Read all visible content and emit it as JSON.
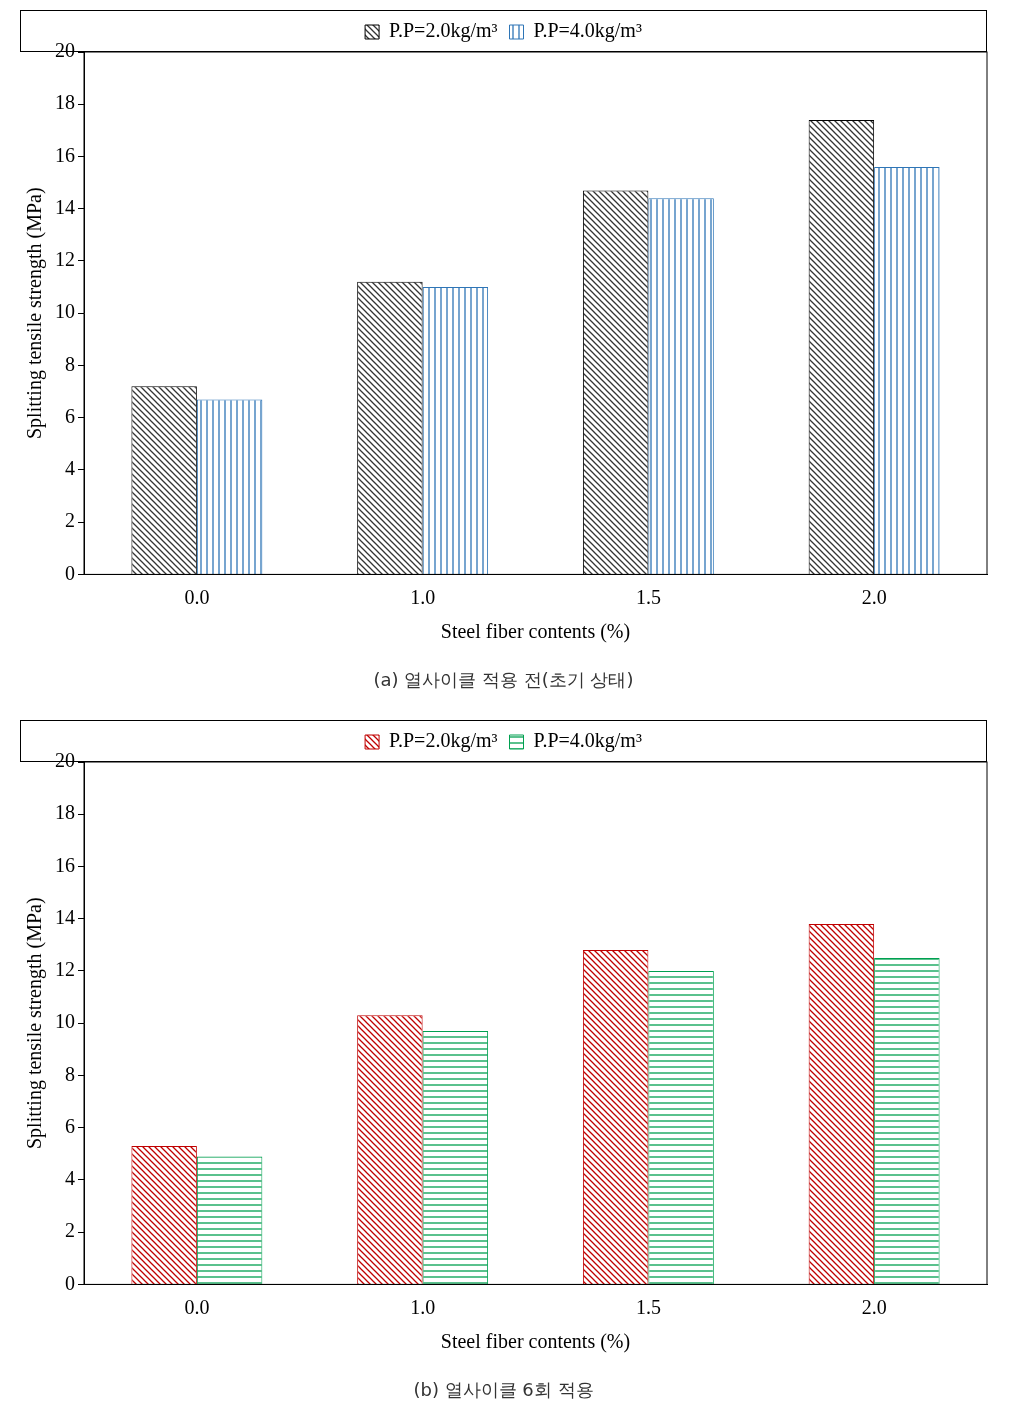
{
  "chart_data": [
    {
      "type": "bar",
      "title": "(a) 열사이클 적용 전(초기 상태)",
      "x_label": "Steel fiber contents (%)",
      "y_label": "Splitting tensile strength (MPa)",
      "categories": [
        "0.0",
        "1.0",
        "1.5",
        "2.0"
      ],
      "series": [
        {
          "name": "P.P=2.0kg/m³",
          "color": "#333333",
          "values": [
            7.2,
            11.2,
            14.7,
            17.4
          ]
        },
        {
          "name": "P.P=4.0kg/m³",
          "color": "#2e75b6",
          "values": [
            6.7,
            11.0,
            14.4,
            15.6
          ]
        }
      ],
      "ylim": [
        0,
        20
      ],
      "yticks": [
        0,
        2,
        4,
        6,
        8,
        10,
        12,
        14,
        16,
        18,
        20
      ],
      "grid": false,
      "legend": "top"
    },
    {
      "type": "bar",
      "title": "(b) 열사이클 6회 적용",
      "x_label": "Steel fiber contents (%)",
      "y_label": "Splitting tensile strength (MPa)",
      "categories": [
        "0.0",
        "1.0",
        "1.5",
        "2.0"
      ],
      "series": [
        {
          "name": "P.P=2.0kg/m³",
          "color": "#c00000",
          "values": [
            5.3,
            10.3,
            12.8,
            13.8
          ]
        },
        {
          "name": "P.P=4.0kg/m³",
          "color": "#00a050",
          "values": [
            4.9,
            9.7,
            12.0,
            12.5
          ]
        }
      ],
      "ylim": [
        0,
        20
      ],
      "yticks": [
        0,
        2,
        4,
        6,
        8,
        10,
        12,
        14,
        16,
        18,
        20
      ],
      "grid": false,
      "legend": "top"
    }
  ]
}
